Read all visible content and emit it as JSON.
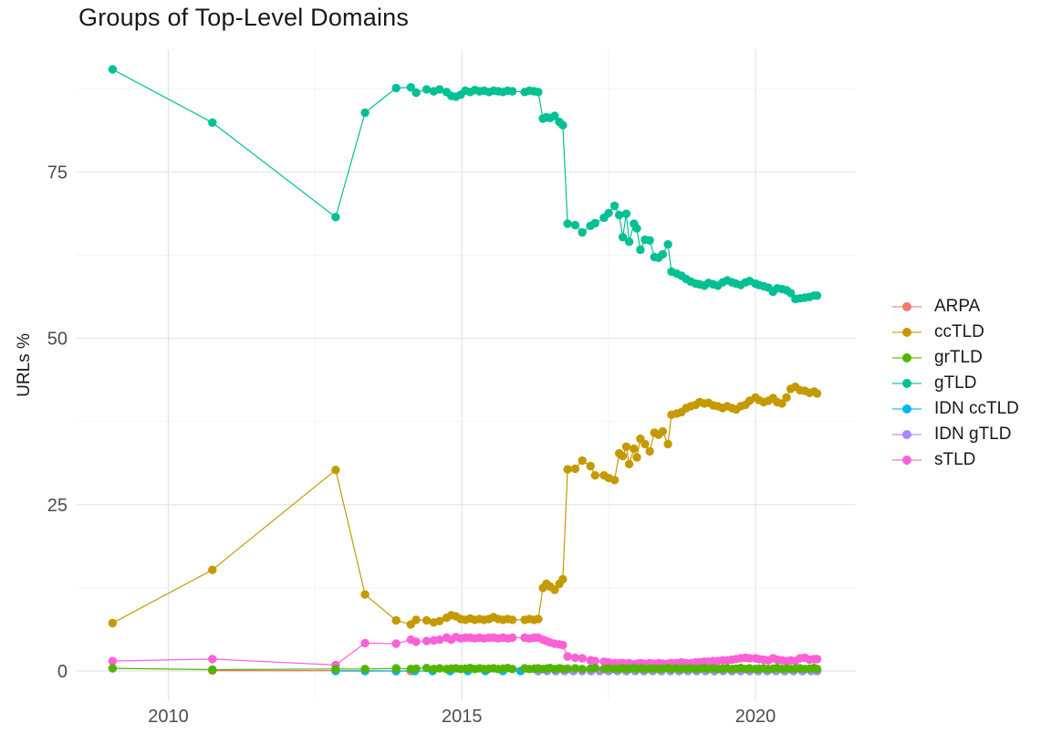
{
  "page": {
    "title": "Groups of Top-Level Domains"
  },
  "chart_data": {
    "type": "line",
    "title": "Groups of Top-Level Domains",
    "xlabel": "",
    "ylabel": "URLs %",
    "x_ticks": [
      2010,
      2015,
      2020
    ],
    "y_ticks": [
      0,
      25,
      50,
      75
    ],
    "x_minor_ticks": [
      2012.5,
      2017.5
    ],
    "y_minor_ticks": [
      12.5,
      37.5,
      62.5,
      87.5
    ],
    "x_range": [
      2008.45,
      2021.7
    ],
    "y_range": [
      -4.5,
      93.5
    ],
    "grid": "major+minor",
    "legend_position": "right",
    "draw_order": [
      "ARPA",
      "IDN ccTLD",
      "IDN gTLD",
      "ccTLD",
      "gTLD",
      "sTLD",
      "grTLD"
    ],
    "x_common": [
      2009.05,
      2010.75,
      2012.85,
      2013.35,
      2013.88,
      2014.13,
      2014.22,
      2014.4,
      2014.52,
      2014.62,
      2014.74,
      2014.82,
      2014.9,
      2014.98,
      2015.06,
      2015.14,
      2015.22,
      2015.3,
      2015.38,
      2015.46,
      2015.54,
      2015.62,
      2015.7,
      2015.78,
      2015.86,
      2016.07,
      2016.15,
      2016.23,
      2016.3,
      2016.38,
      2016.44,
      2016.5,
      2016.58,
      2016.66,
      2016.72,
      2016.8,
      2016.93,
      2017.05,
      2017.19,
      2017.27,
      2017.42,
      2017.5,
      2017.6,
      2017.68,
      2017.74,
      2017.8,
      2017.85,
      2017.93,
      2017.98,
      2018.04,
      2018.12,
      2018.2,
      2018.28,
      2018.35,
      2018.42,
      2018.51,
      2018.57,
      2018.66,
      2018.74,
      2018.82,
      2018.9,
      2018.98,
      2019.05,
      2019.13,
      2019.2,
      2019.28,
      2019.36,
      2019.44,
      2019.52,
      2019.6,
      2019.67,
      2019.75,
      2019.83,
      2019.9,
      2020.0,
      2020.06,
      2020.14,
      2020.22,
      2020.3,
      2020.37,
      2020.45,
      2020.53,
      2020.6,
      2020.68,
      2020.76,
      2020.84,
      2020.92,
      2021.0,
      2021.05
    ],
    "series": [
      {
        "name": "ARPA",
        "color": "#F8766D",
        "x": [
          2010.75,
          2012.85,
          2013.35,
          2013.88,
          2014.13
        ],
        "y": [
          0.05,
          0.05,
          0.05,
          0.0,
          0.0
        ]
      },
      {
        "name": "ccTLD",
        "color": "#C49A00",
        "x": "common",
        "y": [
          7.2,
          15.2,
          30.2,
          11.5,
          7.6,
          7.0,
          7.7,
          7.6,
          7.3,
          7.5,
          8.0,
          8.4,
          8.2,
          7.8,
          7.7,
          7.9,
          7.7,
          7.8,
          7.7,
          7.8,
          8.1,
          7.8,
          7.7,
          7.8,
          7.7,
          7.7,
          7.8,
          7.7,
          7.8,
          12.5,
          13.1,
          12.7,
          12.2,
          13.1,
          13.8,
          30.3,
          30.4,
          31.6,
          30.8,
          29.4,
          29.4,
          29.0,
          28.7,
          32.7,
          32.3,
          33.7,
          31.1,
          33.4,
          32.1,
          34.9,
          34.1,
          33.0,
          35.8,
          35.5,
          36.0,
          34.1,
          38.5,
          38.7,
          38.9,
          39.5,
          39.8,
          40.0,
          40.4,
          40.2,
          40.3,
          39.9,
          39.8,
          39.5,
          39.8,
          39.5,
          39.3,
          39.8,
          40.0,
          40.6,
          41.1,
          40.7,
          40.4,
          40.6,
          41.0,
          40.4,
          40.2,
          41.1,
          42.4,
          42.7,
          42.2,
          42.1,
          41.8,
          42.0,
          41.7
        ]
      },
      {
        "name": "grTLD",
        "color": "#53B400",
        "x": "common",
        "y": [
          0.4,
          0.2,
          0.3,
          0.3,
          0.4,
          0.3,
          0.35,
          0.45,
          0.3,
          0.4,
          0.3,
          0.35,
          0.4,
          0.3,
          0.35,
          0.45,
          0.3,
          0.4,
          0.3,
          0.35,
          0.4,
          0.3,
          0.35,
          0.45,
          0.3,
          0.4,
          0.3,
          0.35,
          0.4,
          0.3,
          0.35,
          0.45,
          0.3,
          0.4,
          0.3,
          0.35,
          0.4,
          0.3,
          0.35,
          0.45,
          0.3,
          0.4,
          0.3,
          0.35,
          0.4,
          0.3,
          0.35,
          0.45,
          0.3,
          0.4,
          0.3,
          0.35,
          0.4,
          0.3,
          0.35,
          0.45,
          0.3,
          0.4,
          0.3,
          0.35,
          0.4,
          0.3,
          0.35,
          0.45,
          0.3,
          0.4,
          0.3,
          0.35,
          0.4,
          0.3,
          0.35,
          0.45,
          0.3,
          0.4,
          0.3,
          0.35,
          0.4,
          0.3,
          0.35,
          0.45,
          0.3,
          0.4,
          0.3,
          0.35,
          0.4,
          0.3,
          0.35,
          0.45,
          0.3
        ]
      },
      {
        "name": "gTLD",
        "color": "#00C094",
        "x": "common",
        "y": [
          90.4,
          82.4,
          68.2,
          83.9,
          87.6,
          87.7,
          86.9,
          87.4,
          87.1,
          87.4,
          87.0,
          86.4,
          86.3,
          86.6,
          87.2,
          87.0,
          87.3,
          87.1,
          87.2,
          87.0,
          87.2,
          87.1,
          87.0,
          87.2,
          87.1,
          87.0,
          87.2,
          87.1,
          87.0,
          83.0,
          83.2,
          83.1,
          83.4,
          82.5,
          82.0,
          67.2,
          67.0,
          65.9,
          66.9,
          67.3,
          68.1,
          68.8,
          69.9,
          68.5,
          65.2,
          68.7,
          64.5,
          67.2,
          66.5,
          63.3,
          64.8,
          64.7,
          62.2,
          62.1,
          62.6,
          64.1,
          60.0,
          59.7,
          59.4,
          58.9,
          58.5,
          58.2,
          58.1,
          57.9,
          58.3,
          58.1,
          57.9,
          58.4,
          58.7,
          58.4,
          58.2,
          58.0,
          58.4,
          58.6,
          58.2,
          58.0,
          57.8,
          57.6,
          57.0,
          57.5,
          57.4,
          57.2,
          56.8,
          55.9,
          56.0,
          56.1,
          56.2,
          56.4,
          56.4
        ]
      },
      {
        "name": "IDN ccTLD",
        "color": "#00B6EB",
        "x": [
          2012.85,
          2013.35,
          2013.88,
          2014.2,
          2014.5,
          2014.8,
          2015.1,
          2015.4,
          2015.7,
          2016.0,
          2016.3,
          2016.6,
          2016.9,
          2017.2,
          2017.5,
          2017.8,
          2018.1,
          2018.4,
          2018.7,
          2019.0,
          2019.3,
          2019.6,
          2019.9,
          2020.2,
          2020.5,
          2020.8,
          2021.05
        ],
        "y": [
          0.0,
          0.0,
          0.0,
          0.0,
          0.0,
          0.0,
          0.0,
          0.0,
          0.0,
          0.0,
          0.0,
          0.0,
          0.0,
          0.0,
          0.0,
          0.0,
          0.0,
          0.0,
          0.0,
          0.0,
          0.0,
          0.0,
          0.0,
          0.0,
          0.0,
          0.0,
          0.0
        ]
      },
      {
        "name": "IDN gTLD",
        "color": "#A58AFF",
        "x": [
          2016.3,
          2016.45,
          2016.6,
          2016.75,
          2016.9,
          2017.05,
          2017.2,
          2017.35,
          2017.5,
          2017.65,
          2017.8,
          2017.95,
          2018.1,
          2018.25,
          2018.4,
          2018.55,
          2018.7,
          2018.85,
          2019.0,
          2019.15,
          2019.3,
          2019.45,
          2019.6,
          2019.75,
          2019.9,
          2020.05,
          2020.2,
          2020.35,
          2020.5,
          2020.65,
          2020.8,
          2020.95,
          2021.05
        ],
        "y": [
          0.0,
          0.0,
          0.0,
          0.0,
          0.0,
          0.0,
          0.0,
          0.0,
          0.0,
          0.0,
          0.0,
          0.0,
          0.0,
          0.0,
          0.0,
          0.0,
          0.0,
          0.0,
          0.0,
          0.0,
          0.0,
          0.0,
          0.0,
          0.0,
          0.0,
          0.0,
          0.0,
          0.0,
          0.0,
          0.0,
          0.0,
          0.0,
          0.0
        ]
      },
      {
        "name": "sTLD",
        "color": "#FB61D7",
        "x": "common",
        "y": [
          1.5,
          1.8,
          0.9,
          4.2,
          4.1,
          4.7,
          4.4,
          4.5,
          4.6,
          4.7,
          5.0,
          4.7,
          5.1,
          4.9,
          5.0,
          5.0,
          4.9,
          5.0,
          4.9,
          5.0,
          5.0,
          4.9,
          5.0,
          4.9,
          5.0,
          5.0,
          4.9,
          5.0,
          5.0,
          4.7,
          4.5,
          4.3,
          4.1,
          4.0,
          3.9,
          2.2,
          2.0,
          1.9,
          1.6,
          1.5,
          1.4,
          1.3,
          1.2,
          1.2,
          1.2,
          1.1,
          1.2,
          1.0,
          1.1,
          1.2,
          1.1,
          1.2,
          1.1,
          1.2,
          1.1,
          1.1,
          1.2,
          1.2,
          1.3,
          1.2,
          1.2,
          1.3,
          1.3,
          1.4,
          1.4,
          1.5,
          1.5,
          1.6,
          1.6,
          1.7,
          1.8,
          1.9,
          2.0,
          1.9,
          1.9,
          1.8,
          1.7,
          1.6,
          1.9,
          1.7,
          1.6,
          1.5,
          1.6,
          1.5,
          1.9,
          2.0,
          1.7,
          1.8,
          1.8
        ]
      }
    ],
    "colors": {
      "grid_major": "#E4E4E4",
      "grid_minor": "#F0F0F0",
      "tick_text": "#4d4d4d",
      "title_text": "#191919"
    }
  }
}
